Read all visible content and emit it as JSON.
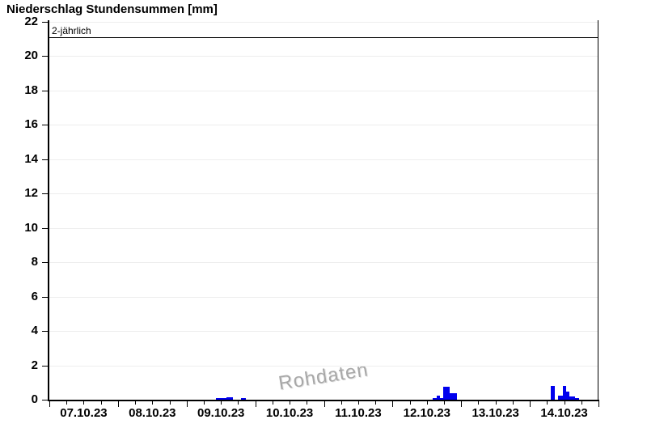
{
  "chart_data": {
    "type": "bar",
    "title": "Niederschlag Stundensummen [mm]",
    "unit": "mm",
    "watermark": "Rohdaten",
    "grid": "horizontal-light",
    "legend_position": "none",
    "y_axis": {
      "min": 0,
      "max": 22.09,
      "tick_step": 2,
      "ticks": [
        0,
        2,
        4,
        6,
        8,
        10,
        12,
        14,
        16,
        18,
        20,
        22
      ]
    },
    "x_axis": {
      "days": [
        "07.10.23",
        "08.10.23",
        "09.10.23",
        "10.10.23",
        "11.10.23",
        "12.10.23",
        "13.10.23",
        "14.10.23"
      ],
      "total_hours": 192,
      "major_tick_every_hours": 24,
      "minor_tick_every_hours": 6,
      "labels_centered_at": "noon"
    },
    "threshold_line": {
      "label": "2-jährlich",
      "value_mm": 21.1
    },
    "bars_hours_since_start": [
      {
        "start_hour": 58.2,
        "end_hour": 62.0,
        "mm": 0.1
      },
      {
        "start_hour": 62.0,
        "end_hour": 64.3,
        "mm": 0.15
      },
      {
        "start_hour": 67.0,
        "end_hour": 68.8,
        "mm": 0.08
      },
      {
        "start_hour": 134.0,
        "end_hour": 135.5,
        "mm": 0.1
      },
      {
        "start_hour": 135.5,
        "end_hour": 136.7,
        "mm": 0.25
      },
      {
        "start_hour": 136.7,
        "end_hour": 137.8,
        "mm": 0.1
      },
      {
        "start_hour": 137.8,
        "end_hour": 140.0,
        "mm": 0.75
      },
      {
        "start_hour": 140.0,
        "end_hour": 142.5,
        "mm": 0.4
      },
      {
        "start_hour": 175.3,
        "end_hour": 176.6,
        "mm": 0.8
      },
      {
        "start_hour": 177.8,
        "end_hour": 179.5,
        "mm": 0.25
      },
      {
        "start_hour": 179.5,
        "end_hour": 180.7,
        "mm": 0.78
      },
      {
        "start_hour": 180.7,
        "end_hour": 181.8,
        "mm": 0.45
      },
      {
        "start_hour": 181.8,
        "end_hour": 183.8,
        "mm": 0.2
      },
      {
        "start_hour": 183.8,
        "end_hour": 185.3,
        "mm": 0.1
      }
    ],
    "colors": {
      "bar": "#0000ee",
      "grid": "#ededed",
      "axis": "#000000",
      "threshold": "#000000",
      "watermark": "#a8a8a8",
      "text": "#000000"
    }
  }
}
